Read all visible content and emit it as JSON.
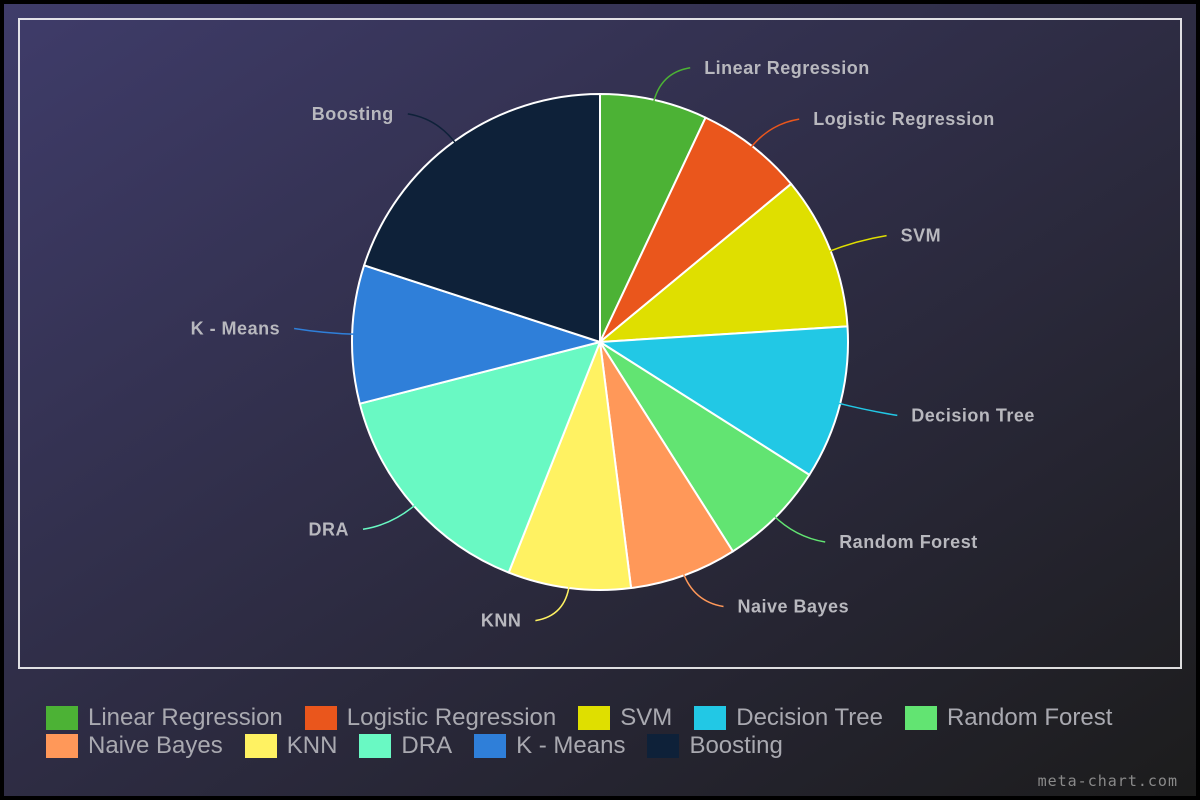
{
  "chart_data": {
    "type": "pie",
    "title": "",
    "slices": [
      {
        "label": "Linear Regression",
        "value": 7,
        "color": "#4cb235"
      },
      {
        "label": "Logistic Regression",
        "value": 7,
        "color": "#ea561c"
      },
      {
        "label": "SVM",
        "value": 10,
        "color": "#dfdf00"
      },
      {
        "label": "Decision Tree",
        "value": 10,
        "color": "#22c8e5"
      },
      {
        "label": "Random Forest",
        "value": 7,
        "color": "#62e472"
      },
      {
        "label": "Naive Bayes",
        "value": 7,
        "color": "#ff9859"
      },
      {
        "label": "KNN",
        "value": 8,
        "color": "#fff262"
      },
      {
        "label": "DRA",
        "value": 15,
        "color": "#69f9c3"
      },
      {
        "label": "K - Means",
        "value": 9,
        "color": "#2f7fd9"
      },
      {
        "label": "Boosting",
        "value": 20,
        "color": "#0e2139"
      }
    ],
    "legend_position": "bottom",
    "labels": "outside with leader lines"
  },
  "colors": {
    "background_start": "#3f3c6a",
    "background_end": "#1c1c1c",
    "frame": "#ffffff",
    "label_text": "#b8b8be"
  },
  "watermark": "meta-chart.com"
}
